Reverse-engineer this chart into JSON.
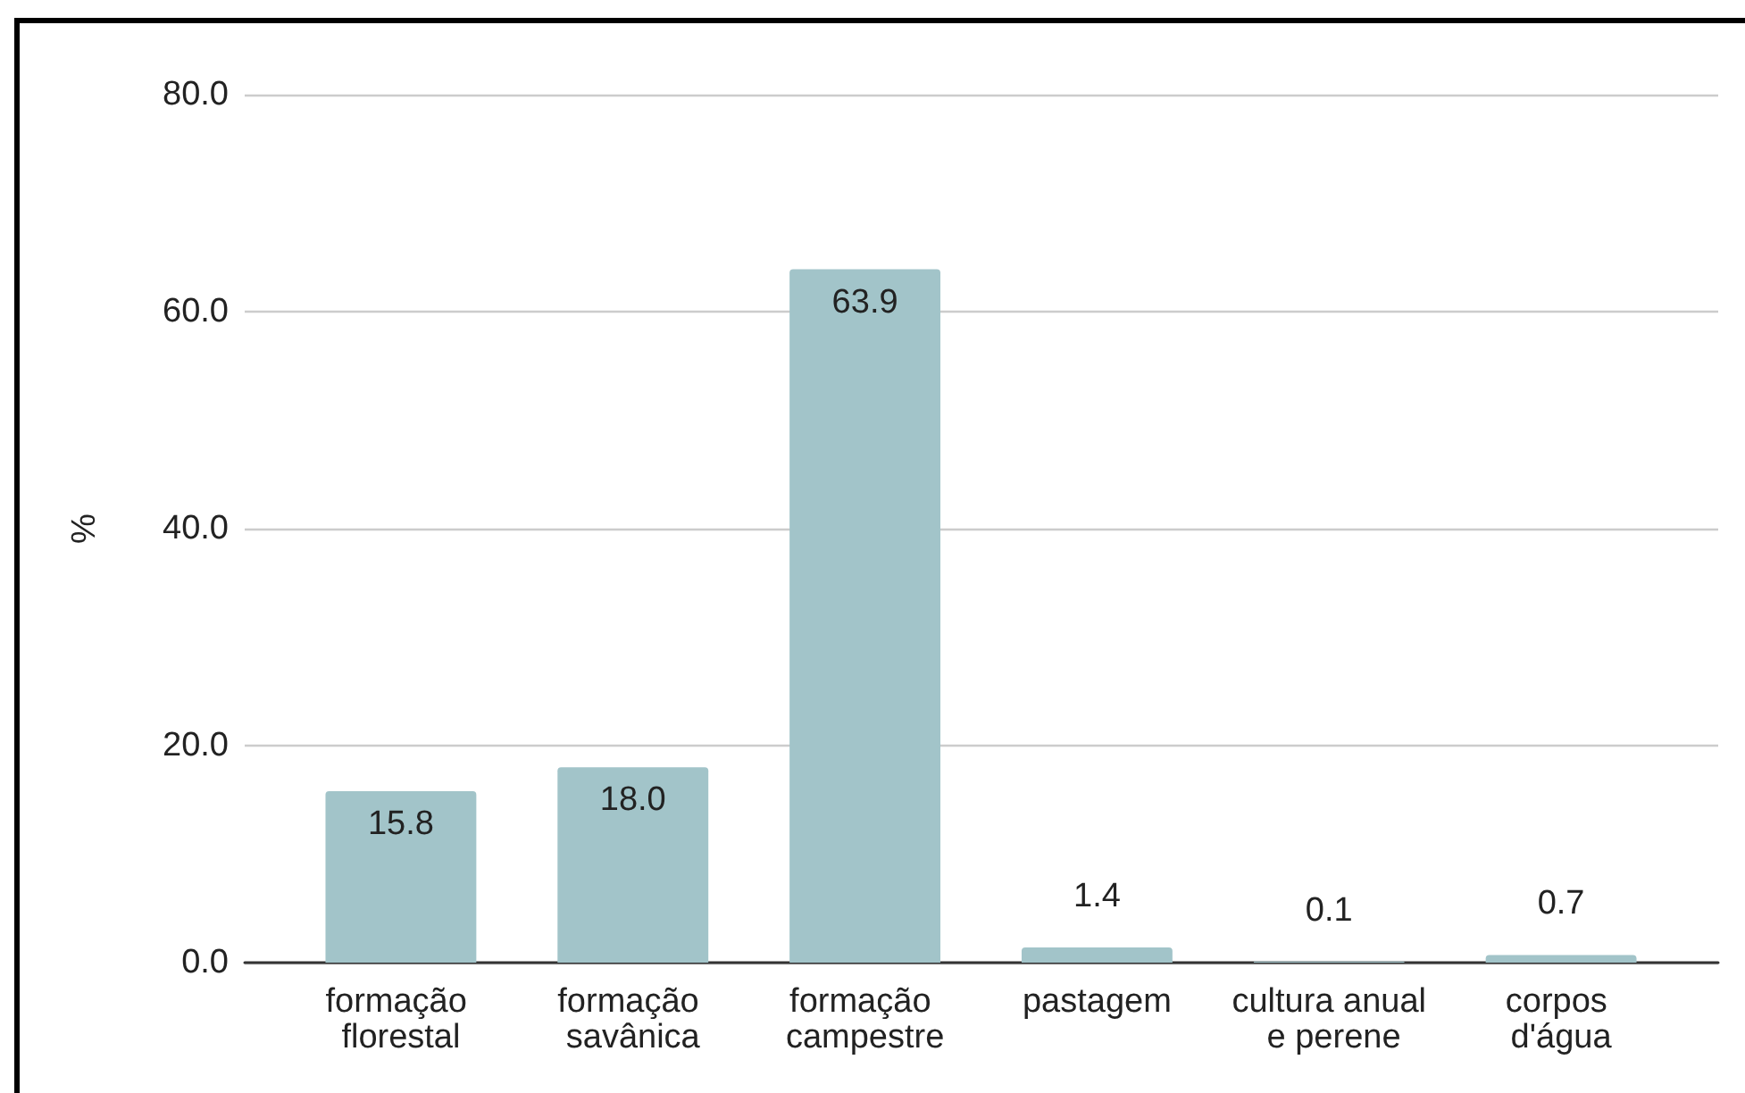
{
  "chart_data": {
    "type": "bar",
    "ylabel": "%",
    "categories": [
      "formação florestal",
      "formação savânica",
      "formação campestre",
      "pastagem",
      "cultura anual e perene",
      "corpos d'água"
    ],
    "values": [
      15.8,
      18.0,
      63.9,
      1.4,
      0.1,
      0.7
    ],
    "value_labels": [
      "15.8",
      "18.0",
      "63.9",
      "1.4",
      "0.1",
      "0.7"
    ],
    "color": "#a2c4c9",
    "ylim": [
      0,
      80
    ],
    "yticks": [
      {
        "value": 0,
        "label": "0.0"
      },
      {
        "value": 20,
        "label": "20.0"
      },
      {
        "value": 40,
        "label": "40.0"
      },
      {
        "value": 60,
        "label": "60.0"
      },
      {
        "value": 80,
        "label": "80.0"
      }
    ],
    "grid": "y"
  }
}
